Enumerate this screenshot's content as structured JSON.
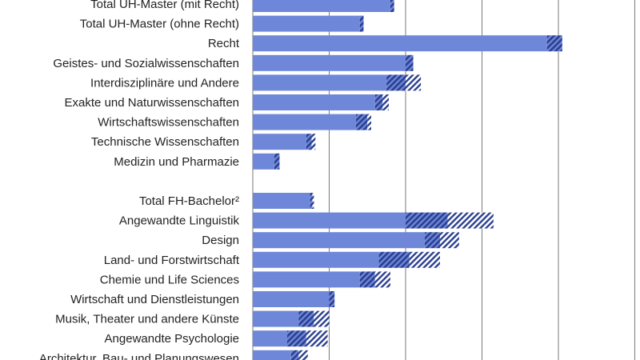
{
  "chart_data": {
    "type": "bar",
    "orientation": "horizontal",
    "stacked": true,
    "grid": true,
    "xlim": [
      0,
      5
    ],
    "categories": [
      "Total UH-Master (mit Recht)",
      "Total UH-Master (ohne Recht)",
      "Recht",
      "Geistes- und Sozialwissenschaften",
      "Interdisziplinäre und Andere",
      "Exakte und Naturwissenschaften",
      "Wirtschaftswissenschaften",
      "Technische Wissenschaften",
      "Medizin und Pharmazie",
      "",
      "Total FH-Bachelor²",
      "Angewandte Linguistik",
      "Design",
      "Land- und Forstwirtschaft",
      "Chemie und Life Sciences",
      "Wirtschaft und Dienstleistungen",
      "Musik, Theater und andere Künste",
      "Angewandte Psychologie",
      "Architektur, Bau- und Planungswesen"
    ],
    "series": [
      {
        "values": [
          1.8,
          1.4,
          3.85,
          2.0,
          1.75,
          1.6,
          1.35,
          0.7,
          0.28,
          null,
          0.75,
          2.0,
          2.25,
          1.65,
          1.4,
          1.0,
          0.6,
          0.45,
          0.5
        ]
      },
      {
        "values": [
          0.05,
          0.05,
          0.2,
          0.1,
          0.25,
          0.1,
          0.15,
          0.07,
          0.07,
          null,
          0.03,
          0.55,
          0.2,
          0.4,
          0.2,
          0.07,
          0.2,
          0.25,
          0.1
        ]
      },
      {
        "values": [
          0,
          0,
          0,
          0,
          0.2,
          0.08,
          0.05,
          0.05,
          0,
          null,
          0.02,
          0.6,
          0.25,
          0.4,
          0.2,
          0,
          0.2,
          0.28,
          0.12
        ]
      }
    ],
    "colors": {
      "bar": "#6f87d8",
      "hatch_dense": "#2a3f8f",
      "hatch_light": "#2a3f8f",
      "grid": "#7a7a7a"
    }
  }
}
